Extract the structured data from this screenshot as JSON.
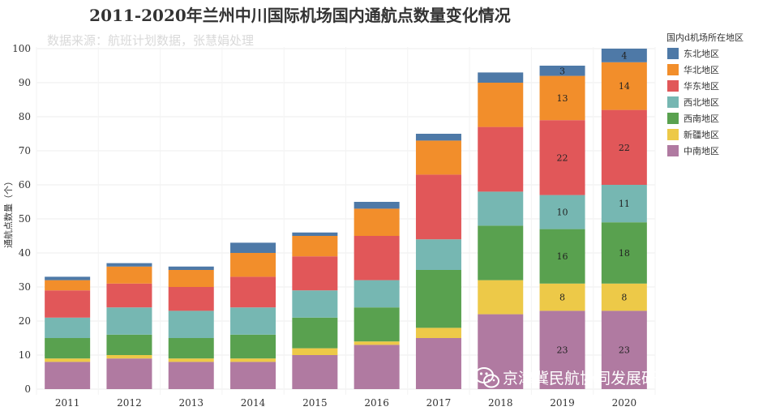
{
  "chart_data": {
    "type": "bar",
    "stacked": true,
    "title": "2011-2020年兰州中川国际机场国内通航点数量变化情况",
    "source_note": "数据来源：航班计划数据，张慧娟处理",
    "ylabel": "通航点数量（个）",
    "xlabel": "",
    "ylim": [
      0,
      100
    ],
    "yticks": [
      0,
      10,
      20,
      30,
      40,
      50,
      60,
      70,
      80,
      90,
      100
    ],
    "categories": [
      "2011",
      "2012",
      "2013",
      "2014",
      "2015",
      "2016",
      "2017",
      "2018",
      "2019",
      "2020"
    ],
    "legend_title": "国内d机场所在地区",
    "legend_position": "right",
    "series": [
      {
        "name": "中南地区",
        "color": "#b07aa1",
        "values": [
          8,
          9,
          8,
          8,
          10,
          13,
          15,
          22,
          23,
          23
        ]
      },
      {
        "name": "新疆地区",
        "color": "#edc948",
        "values": [
          1,
          1,
          1,
          1,
          2,
          1,
          3,
          10,
          8,
          8
        ]
      },
      {
        "name": "西南地区",
        "color": "#59a14f",
        "values": [
          6,
          6,
          6,
          7,
          9,
          10,
          17,
          16,
          16,
          18
        ]
      },
      {
        "name": "西北地区",
        "color": "#76b7b2",
        "values": [
          6,
          8,
          8,
          8,
          8,
          8,
          9,
          10,
          10,
          11
        ]
      },
      {
        "name": "华东地区",
        "color": "#e15759",
        "values": [
          8,
          7,
          7,
          9,
          10,
          13,
          19,
          19,
          22,
          22
        ]
      },
      {
        "name": "华北地区",
        "color": "#f28e2b",
        "values": [
          3,
          5,
          5,
          7,
          6,
          8,
          10,
          13,
          13,
          14
        ]
      },
      {
        "name": "东北地区",
        "color": "#4e79a7",
        "values": [
          1,
          1,
          1,
          3,
          1,
          2,
          2,
          3,
          3,
          4
        ]
      }
    ],
    "legend_order": [
      "东北地区",
      "华北地区",
      "华东地区",
      "西北地区",
      "西南地区",
      "新疆地区",
      "中南地区"
    ],
    "data_labels": [
      {
        "category": "2019",
        "series": "中南地区",
        "text": "23"
      },
      {
        "category": "2019",
        "series": "新疆地区",
        "text": "8"
      },
      {
        "category": "2019",
        "series": "西南地区",
        "text": "16"
      },
      {
        "category": "2019",
        "series": "西北地区",
        "text": "10"
      },
      {
        "category": "2019",
        "series": "华东地区",
        "text": "22"
      },
      {
        "category": "2019",
        "series": "华北地区",
        "text": "13"
      },
      {
        "category": "2019",
        "series": "东北地区",
        "text": "3"
      },
      {
        "category": "2020",
        "series": "中南地区",
        "text": "23"
      },
      {
        "category": "2020",
        "series": "新疆地区",
        "text": "8"
      },
      {
        "category": "2020",
        "series": "西南地区",
        "text": "18"
      },
      {
        "category": "2020",
        "series": "西北地区",
        "text": "11"
      },
      {
        "category": "2020",
        "series": "华东地区",
        "text": "22"
      },
      {
        "category": "2020",
        "series": "华北地区",
        "text": "14"
      },
      {
        "category": "2020",
        "series": "东北地区",
        "text": "4"
      }
    ]
  },
  "watermark": {
    "text": "京津冀民航协同发展研究中心",
    "icon": "wechat-icon"
  }
}
